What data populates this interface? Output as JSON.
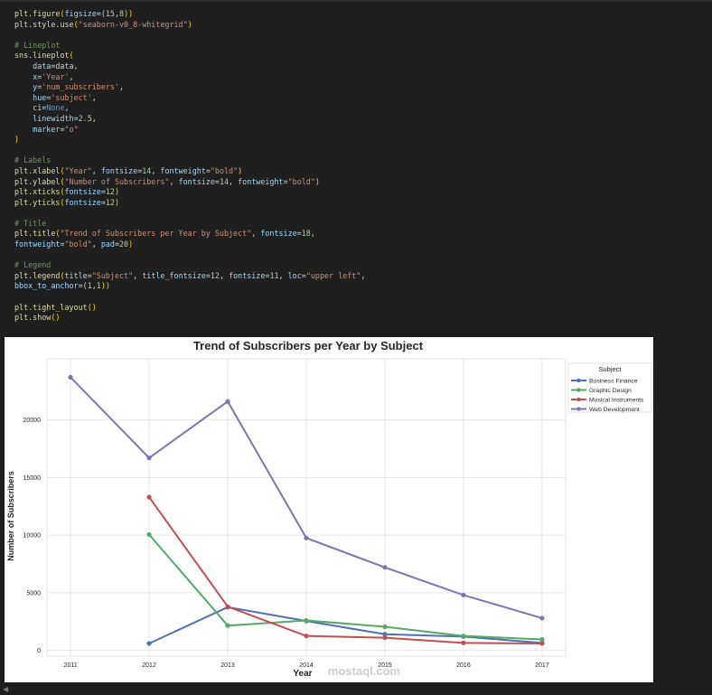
{
  "code": {
    "lines": [
      [
        [
          "plt.",
          "f"
        ],
        [
          "figure",
          "f"
        ],
        [
          "(",
          "b"
        ],
        [
          "figsize",
          "p"
        ],
        [
          "=(",
          "t"
        ],
        [
          "15",
          "n"
        ],
        [
          ",",
          "t"
        ],
        [
          "8",
          "n"
        ],
        [
          "))",
          "b"
        ]
      ],
      [
        [
          "plt.",
          "f"
        ],
        [
          "style.",
          "f"
        ],
        [
          "use",
          "f"
        ],
        [
          "(",
          "b"
        ],
        [
          "\"seaborn-v0_8-whitegrid\"",
          "s"
        ],
        [
          ")",
          "b"
        ]
      ],
      [],
      [
        [
          "# Lineplot",
          "c"
        ]
      ],
      [
        [
          "sns.",
          "f"
        ],
        [
          "lineplot",
          "f"
        ],
        [
          "(",
          "b"
        ]
      ],
      [
        [
          "    ",
          "d"
        ],
        [
          "data",
          "p"
        ],
        [
          "=data,",
          "t"
        ]
      ],
      [
        [
          "    ",
          "d"
        ],
        [
          "x",
          "p"
        ],
        [
          "=",
          "t"
        ],
        [
          "'Year'",
          "s"
        ],
        [
          ",",
          "t"
        ]
      ],
      [
        [
          "    ",
          "d"
        ],
        [
          "y",
          "p"
        ],
        [
          "=",
          "t"
        ],
        [
          "'num_subscribers'",
          "s"
        ],
        [
          ",",
          "t"
        ]
      ],
      [
        [
          "    ",
          "d"
        ],
        [
          "hue",
          "p"
        ],
        [
          "=",
          "t"
        ],
        [
          "'subject'",
          "s"
        ],
        [
          ",",
          "t"
        ]
      ],
      [
        [
          "    ",
          "d"
        ],
        [
          "ci",
          "p"
        ],
        [
          "=",
          "t"
        ],
        [
          "None",
          "k"
        ],
        [
          ",",
          "t"
        ]
      ],
      [
        [
          "    ",
          "d"
        ],
        [
          "linewidth",
          "p"
        ],
        [
          "=",
          "t"
        ],
        [
          "2.5",
          "n"
        ],
        [
          ",",
          "t"
        ]
      ],
      [
        [
          "    ",
          "d"
        ],
        [
          "marker",
          "p"
        ],
        [
          "=",
          "t"
        ],
        [
          "\"o\"",
          "s"
        ]
      ],
      [
        [
          ")",
          "b"
        ]
      ],
      [],
      [
        [
          "# Labels",
          "c"
        ]
      ],
      [
        [
          "plt.",
          "f"
        ],
        [
          "xlabel",
          "f"
        ],
        [
          "(",
          "b"
        ],
        [
          "\"Year\"",
          "s"
        ],
        [
          ", ",
          "t"
        ],
        [
          "fontsize",
          "p"
        ],
        [
          "=",
          "t"
        ],
        [
          "14",
          "n"
        ],
        [
          ", ",
          "t"
        ],
        [
          "fontweight",
          "p"
        ],
        [
          "=",
          "t"
        ],
        [
          "\"bold\"",
          "s"
        ],
        [
          ")",
          "b"
        ]
      ],
      [
        [
          "plt.",
          "f"
        ],
        [
          "ylabel",
          "f"
        ],
        [
          "(",
          "b"
        ],
        [
          "\"Number of Subscribers\"",
          "s"
        ],
        [
          ", ",
          "t"
        ],
        [
          "fontsize",
          "p"
        ],
        [
          "=",
          "t"
        ],
        [
          "14",
          "n"
        ],
        [
          ", ",
          "t"
        ],
        [
          "fontweight",
          "p"
        ],
        [
          "=",
          "t"
        ],
        [
          "\"bold\"",
          "s"
        ],
        [
          ")",
          "b"
        ]
      ],
      [
        [
          "plt.",
          "f"
        ],
        [
          "xticks",
          "f"
        ],
        [
          "(",
          "b"
        ],
        [
          "fontsize",
          "p"
        ],
        [
          "=",
          "t"
        ],
        [
          "12",
          "n"
        ],
        [
          ")",
          "b"
        ]
      ],
      [
        [
          "plt.",
          "f"
        ],
        [
          "yticks",
          "f"
        ],
        [
          "(",
          "b"
        ],
        [
          "fontsize",
          "p"
        ],
        [
          "=",
          "t"
        ],
        [
          "12",
          "n"
        ],
        [
          ")",
          "b"
        ]
      ],
      [],
      [
        [
          "# Title",
          "c"
        ]
      ],
      [
        [
          "plt.",
          "f"
        ],
        [
          "title",
          "f"
        ],
        [
          "(",
          "b"
        ],
        [
          "\"Trend of Subscribers per Year by Subject\"",
          "s"
        ],
        [
          ", ",
          "t"
        ],
        [
          "fontsize",
          "p"
        ],
        [
          "=",
          "t"
        ],
        [
          "18",
          "n"
        ],
        [
          ",",
          "t"
        ]
      ],
      [
        [
          "fontweight",
          "p"
        ],
        [
          "=",
          "t"
        ],
        [
          "\"bold\"",
          "s"
        ],
        [
          ", ",
          "t"
        ],
        [
          "pad",
          "p"
        ],
        [
          "=",
          "t"
        ],
        [
          "20",
          "n"
        ],
        [
          ")",
          "b"
        ]
      ],
      [],
      [
        [
          "# Legend",
          "c"
        ]
      ],
      [
        [
          "plt.",
          "f"
        ],
        [
          "legend",
          "f"
        ],
        [
          "(",
          "b"
        ],
        [
          "title",
          "p"
        ],
        [
          "=",
          "t"
        ],
        [
          "\"Subject\"",
          "s"
        ],
        [
          ", ",
          "t"
        ],
        [
          "title_fontsize",
          "p"
        ],
        [
          "=",
          "t"
        ],
        [
          "12",
          "n"
        ],
        [
          ", ",
          "t"
        ],
        [
          "fontsize",
          "p"
        ],
        [
          "=",
          "t"
        ],
        [
          "11",
          "n"
        ],
        [
          ", ",
          "t"
        ],
        [
          "loc",
          "p"
        ],
        [
          "=",
          "t"
        ],
        [
          "\"upper left\"",
          "s"
        ],
        [
          ",",
          "t"
        ]
      ],
      [
        [
          "bbox_to_anchor",
          "p"
        ],
        [
          "=(",
          "t"
        ],
        [
          "1",
          "n"
        ],
        [
          ",",
          "t"
        ],
        [
          "1",
          "n"
        ],
        [
          "))",
          "b"
        ]
      ],
      [],
      [
        [
          "plt.",
          "f"
        ],
        [
          "tight_layout",
          "f"
        ],
        [
          "()",
          "b"
        ]
      ],
      [
        [
          "plt.",
          "f"
        ],
        [
          "show",
          "f"
        ],
        [
          "()",
          "b"
        ]
      ]
    ]
  },
  "chart_data": {
    "type": "line",
    "title": "Trend of Subscribers per Year by Subject",
    "xlabel": "Year",
    "ylabel": "Number of Subscribers",
    "x": [
      2011,
      2012,
      2013,
      2014,
      2015,
      2016,
      2017
    ],
    "xlim": [
      2010.7,
      2017.3
    ],
    "ylim": [
      -500,
      25300
    ],
    "yticks": [
      0,
      5000,
      10000,
      15000,
      20000
    ],
    "grid": true,
    "legend_title": "Subject",
    "legend_position": "outside upper-right",
    "series": [
      {
        "name": "Business Finance",
        "color": "#4c72b0",
        "points": [
          [
            2012,
            600
          ],
          [
            2013,
            3750
          ],
          [
            2014,
            2550
          ],
          [
            2015,
            1400
          ],
          [
            2016,
            1200
          ],
          [
            2017,
            650
          ]
        ]
      },
      {
        "name": "Graphic Design",
        "color": "#55a868",
        "points": [
          [
            2012,
            10050
          ],
          [
            2013,
            2150
          ],
          [
            2014,
            2600
          ],
          [
            2015,
            2050
          ],
          [
            2016,
            1250
          ],
          [
            2017,
            950
          ]
        ]
      },
      {
        "name": "Musical Instruments",
        "color": "#c44e52",
        "points": [
          [
            2012,
            13300
          ],
          [
            2013,
            3800
          ],
          [
            2014,
            1250
          ],
          [
            2015,
            1100
          ],
          [
            2016,
            650
          ],
          [
            2017,
            600
          ]
        ]
      },
      {
        "name": "Web Development",
        "color": "#8172b3",
        "points": [
          [
            2011,
            23700
          ],
          [
            2012,
            16700
          ],
          [
            2013,
            21600
          ],
          [
            2014,
            9750
          ],
          [
            2015,
            7200
          ],
          [
            2016,
            4800
          ],
          [
            2017,
            2800
          ]
        ]
      }
    ]
  },
  "watermark": {
    "text": "mostaql.com"
  }
}
